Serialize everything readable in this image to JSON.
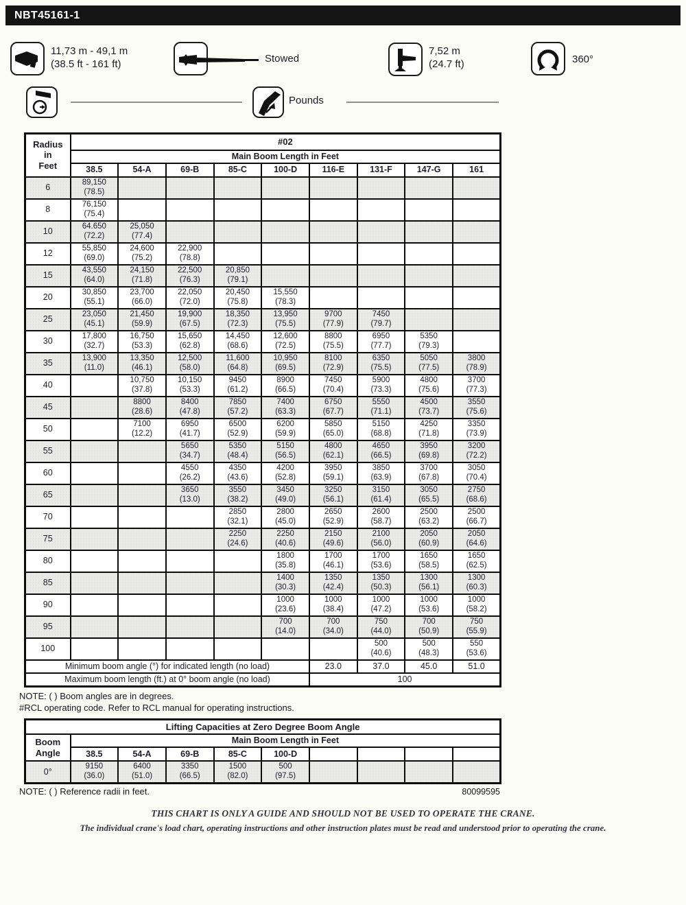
{
  "title": "NBT45161-1",
  "colors": {
    "header_bar": "#141414",
    "shaded_row": "#e9e9e7",
    "border": "#0b0b0b",
    "page_bg": "#fcfcf6"
  },
  "spec_icons": {
    "boom_range": {
      "icon": "boom-length-icon",
      "line1": "11,73 m - 49,1 m",
      "line2": "(38.5 ft - 161 ft)"
    },
    "jib": {
      "icon": "jib-stowed-icon",
      "label": "Stowed"
    },
    "outrigger": {
      "icon": "outrigger-span-icon",
      "line1": "7,52 m",
      "line2": "(24.7 ft)"
    },
    "swing": {
      "icon": "swing-360-icon",
      "label": "360°"
    },
    "counterweight": {
      "icon": "counterweight-dial-icon"
    },
    "units": {
      "icon": "capacity-pounds-icon",
      "label": "Pounds"
    }
  },
  "main_table": {
    "corner_label": "Radius\nin\nFeet",
    "rcl_code": "#02",
    "boom_header": "Main Boom Length in Feet",
    "columns": [
      "38.5",
      "54-A",
      "69-B",
      "85-C",
      "100-D",
      "116-E",
      "131-F",
      "147-G",
      "161"
    ],
    "rows": [
      {
        "radius": "6",
        "cells": [
          [
            "89,150",
            "(78.5)"
          ],
          null,
          null,
          null,
          null,
          null,
          null,
          null,
          null
        ]
      },
      {
        "radius": "8",
        "cells": [
          [
            "76,150",
            "(75.4)"
          ],
          null,
          null,
          null,
          null,
          null,
          null,
          null,
          null
        ]
      },
      {
        "radius": "10",
        "cells": [
          [
            "64.650",
            "(72.2)"
          ],
          [
            "25,050",
            "(77.4)"
          ],
          null,
          null,
          null,
          null,
          null,
          null,
          null
        ]
      },
      {
        "radius": "12",
        "cells": [
          [
            "55,850",
            "(69.0)"
          ],
          [
            "24,600",
            "(75.2)"
          ],
          [
            "22,900",
            "(78.8)"
          ],
          null,
          null,
          null,
          null,
          null,
          null
        ]
      },
      {
        "radius": "15",
        "cells": [
          [
            "43,550",
            "(64.0)"
          ],
          [
            "24,150",
            "(71.8)"
          ],
          [
            "22,500",
            "(76.3)"
          ],
          [
            "20,850",
            "(79.1)"
          ],
          null,
          null,
          null,
          null,
          null
        ]
      },
      {
        "radius": "20",
        "cells": [
          [
            "30,850",
            "(55.1)"
          ],
          [
            "23,700",
            "(66.0)"
          ],
          [
            "22,050",
            "(72.0)"
          ],
          [
            "20,450",
            "(75.8)"
          ],
          [
            "15,550",
            "(78.3)"
          ],
          null,
          null,
          null,
          null
        ]
      },
      {
        "radius": "25",
        "cells": [
          [
            "23,050",
            "(45.1)"
          ],
          [
            "21,450",
            "(59.9)"
          ],
          [
            "19,900",
            "(67.5)"
          ],
          [
            "18,350",
            "(72.3)"
          ],
          [
            "13,950",
            "(75.5)"
          ],
          [
            "9700",
            "(77.9)"
          ],
          [
            "7450",
            "(79.7)"
          ],
          null,
          null
        ]
      },
      {
        "radius": "30",
        "cells": [
          [
            "17,800",
            "(32.7)"
          ],
          [
            "16,750",
            "(53.3)"
          ],
          [
            "15,650",
            "(62.8)"
          ],
          [
            "14,450",
            "(68.6)"
          ],
          [
            "12,600",
            "(72.5)"
          ],
          [
            "8800",
            "(75.5)"
          ],
          [
            "6950",
            "(77.7)"
          ],
          [
            "5350",
            "(79.3)"
          ],
          null
        ]
      },
      {
        "radius": "35",
        "cells": [
          [
            "13,900",
            "(11.0)"
          ],
          [
            "13,350",
            "(46.1)"
          ],
          [
            "12,500",
            "(58.0)"
          ],
          [
            "11,600",
            "(64.8)"
          ],
          [
            "10,950",
            "(69.5)"
          ],
          [
            "8100",
            "(72.9)"
          ],
          [
            "6350",
            "(75.5)"
          ],
          [
            "5050",
            "(77.5)"
          ],
          [
            "3800",
            "(78.9)"
          ]
        ]
      },
      {
        "radius": "40",
        "cells": [
          null,
          [
            "10,750",
            "(37.8)"
          ],
          [
            "10,150",
            "(53.3)"
          ],
          [
            "9450",
            "(61.2)"
          ],
          [
            "8900",
            "(66.5)"
          ],
          [
            "7450",
            "(70.4)"
          ],
          [
            "5900",
            "(73.3)"
          ],
          [
            "4800",
            "(75.6)"
          ],
          [
            "3700",
            "(77.3)"
          ]
        ]
      },
      {
        "radius": "45",
        "cells": [
          null,
          [
            "8800",
            "(28.6)"
          ],
          [
            "8400",
            "(47.8)"
          ],
          [
            "7850",
            "(57.2)"
          ],
          [
            "7400",
            "(63.3)"
          ],
          [
            "6750",
            "(67.7)"
          ],
          [
            "5550",
            "(71.1)"
          ],
          [
            "4500",
            "(73.7)"
          ],
          [
            "3550",
            "(75.6)"
          ]
        ]
      },
      {
        "radius": "50",
        "cells": [
          null,
          [
            "7100",
            "(12.2)"
          ],
          [
            "6950",
            "(41.7)"
          ],
          [
            "6500",
            "(52.9)"
          ],
          [
            "6200",
            "(59.9)"
          ],
          [
            "5850",
            "(65.0)"
          ],
          [
            "5150",
            "(68.8)"
          ],
          [
            "4250",
            "(71.8)"
          ],
          [
            "3350",
            "(73.9)"
          ]
        ]
      },
      {
        "radius": "55",
        "cells": [
          null,
          null,
          [
            "5650",
            "(34.7)"
          ],
          [
            "5350",
            "(48.4)"
          ],
          [
            "5150",
            "(56.5)"
          ],
          [
            "4800",
            "(62.1)"
          ],
          [
            "4650",
            "(66.5)"
          ],
          [
            "3950",
            "(69.8)"
          ],
          [
            "3200",
            "(72.2)"
          ]
        ]
      },
      {
        "radius": "60",
        "cells": [
          null,
          null,
          [
            "4550",
            "(26.2)"
          ],
          [
            "4350",
            "(43.6)"
          ],
          [
            "4200",
            "(52.8)"
          ],
          [
            "3950",
            "(59.1)"
          ],
          [
            "3850",
            "(63.9)"
          ],
          [
            "3700",
            "(67.8)"
          ],
          [
            "3050",
            "(70.4)"
          ]
        ]
      },
      {
        "radius": "65",
        "cells": [
          null,
          null,
          [
            "3650",
            "(13.0)"
          ],
          [
            "3550",
            "(38.2)"
          ],
          [
            "3450",
            "(49.0)"
          ],
          [
            "3250",
            "(56.1)"
          ],
          [
            "3150",
            "(61.4)"
          ],
          [
            "3050",
            "(65.5)"
          ],
          [
            "2750",
            "(68.6)"
          ]
        ]
      },
      {
        "radius": "70",
        "cells": [
          null,
          null,
          null,
          [
            "2850",
            "(32.1)"
          ],
          [
            "2800",
            "(45.0)"
          ],
          [
            "2650",
            "(52.9)"
          ],
          [
            "2600",
            "(58.7)"
          ],
          [
            "2500",
            "(63.2)"
          ],
          [
            "2500",
            "(66.7)"
          ]
        ]
      },
      {
        "radius": "75",
        "cells": [
          null,
          null,
          null,
          [
            "2250",
            "(24.6)"
          ],
          [
            "2250",
            "(40.6)"
          ],
          [
            "2150",
            "(49.6)"
          ],
          [
            "2100",
            "(56.0)"
          ],
          [
            "2050",
            "(60.9)"
          ],
          [
            "2050",
            "(64.6)"
          ]
        ]
      },
      {
        "radius": "80",
        "cells": [
          null,
          null,
          null,
          null,
          [
            "1800",
            "(35.8)"
          ],
          [
            "1700",
            "(46.1)"
          ],
          [
            "1700",
            "(53.6)"
          ],
          [
            "1650",
            "(58.5)"
          ],
          [
            "1650",
            "(62.5)"
          ]
        ]
      },
      {
        "radius": "85",
        "cells": [
          null,
          null,
          null,
          null,
          [
            "1400",
            "(30.3)"
          ],
          [
            "1350",
            "(42.4)"
          ],
          [
            "1350",
            "(50.3)"
          ],
          [
            "1300",
            "(56.1)"
          ],
          [
            "1300",
            "(60.3)"
          ]
        ]
      },
      {
        "radius": "90",
        "cells": [
          null,
          null,
          null,
          null,
          [
            "1000",
            "(23.6)"
          ],
          [
            "1000",
            "(38.4)"
          ],
          [
            "1000",
            "(47.2)"
          ],
          [
            "1000",
            "(53.6)"
          ],
          [
            "1000",
            "(58.2)"
          ]
        ]
      },
      {
        "radius": "95",
        "cells": [
          null,
          null,
          null,
          null,
          [
            "700",
            "(14.0)"
          ],
          [
            "700",
            "(34.0)"
          ],
          [
            "750",
            "(44.0)"
          ],
          [
            "700",
            "(50.9)"
          ],
          [
            "750",
            "(55.9)"
          ]
        ]
      },
      {
        "radius": "100",
        "cells": [
          null,
          null,
          null,
          null,
          null,
          null,
          [
            "500",
            "(40.6)"
          ],
          [
            "500",
            "(48.3)"
          ],
          [
            "550",
            "(53.6)"
          ]
        ]
      }
    ],
    "min_angle_row": {
      "label": "Minimum boom angle (°) for indicated length (no load)",
      "values": [
        "23.0",
        "37.0",
        "45.0",
        "51.0"
      ]
    },
    "max_length_row": {
      "label": "Maximum boom length (ft.) at 0° boom angle (no load)",
      "value": "100"
    }
  },
  "notes": [
    "NOTE: ( ) Boom angles are in degrees.",
    "#RCL operating code. Refer to RCL manual for operating instructions."
  ],
  "zero_table": {
    "title": "Lifting Capacities at Zero Degree Boom Angle",
    "corner_label": "Boom\nAngle",
    "boom_header": "Main Boom Length in Feet",
    "columns": [
      "38.5",
      "54-A",
      "69-B",
      "85-C",
      "100-D",
      "",
      "",
      "",
      ""
    ],
    "row": {
      "angle": "0°",
      "cells": [
        [
          "9150",
          "(36.0)"
        ],
        [
          "6400",
          "(51.0)"
        ],
        [
          "3350",
          "(66.5)"
        ],
        [
          "1500",
          "(82.0)"
        ],
        [
          "500",
          "(97.5)"
        ],
        null,
        null,
        null,
        null
      ]
    }
  },
  "note_zero": "NOTE: ( ) Reference radii in feet.",
  "doc_number": "80099595",
  "disclaimer": "THIS CHART IS ONLY A GUIDE AND SHOULD NOT BE USED TO OPERATE THE CRANE.",
  "truncated_line": "The individual crane's load chart, operating instructions and other instruction plates must be read and understood prior to operating the crane."
}
